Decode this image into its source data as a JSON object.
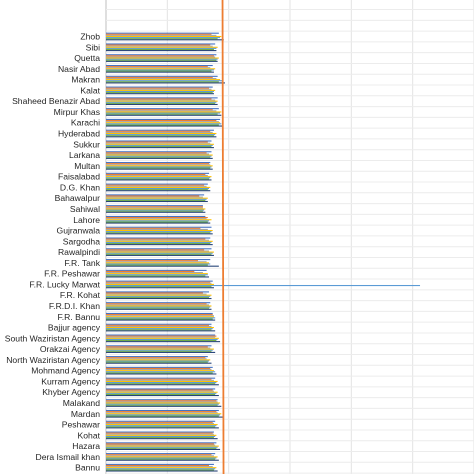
{
  "chart_data": {
    "type": "bar",
    "orientation": "horizontal",
    "title": "",
    "xlabel": "",
    "ylabel": "",
    "xlim": [
      0,
      30
    ],
    "grid": true,
    "legend": "none",
    "categories": [
      "Zhob",
      "Sibi",
      "Quetta",
      "Nasir Abad",
      "Makran",
      "Kalat",
      "Shaheed Benazir Abad",
      "Mirpur Khas",
      "Karachi",
      "Hyderabad",
      "Sukkur",
      "Larkana",
      "Multan",
      "Faisalabad",
      "D.G. Khan",
      "Bahawalpur",
      "Sahiwal",
      "Lahore",
      "Gujranwala",
      "Sargodha",
      "Rawalpindi",
      "F.R. Tank",
      "F.R. Peshawar",
      "F.R. Lucky Marwat",
      "F.R. Kohat",
      "F.R.D.I. Khan",
      "F.R. Bannu",
      "Bajjur agency",
      "South Waziristan Agency",
      "Orakzai Agency",
      "North Waziristan Agency",
      "Mohmand Agency",
      "Kurram Agency",
      "Khyber Agency",
      "Malakand",
      "Mardan",
      "Peshawar",
      "Kohat",
      "Hazara",
      "Dera Ismail khan",
      "Bannu"
    ],
    "series": [
      {
        "color": "#4472c4",
        "values": [
          9.2,
          8.9,
          9.0,
          8.7,
          9.1,
          8.7,
          9.1,
          9.2,
          9.3,
          8.8,
          8.6,
          8.6,
          8.5,
          8.4,
          8.3,
          8.0,
          7.9,
          8.1,
          8.6,
          8.5,
          8.6,
          8.5,
          8.2,
          8.7,
          8.4,
          8.5,
          8.7,
          8.6,
          8.9,
          8.6,
          8.3,
          8.7,
          8.9,
          8.9,
          9.1,
          9.2,
          8.9,
          8.8,
          9.0,
          8.9,
          8.8
        ]
      },
      {
        "color": "#ed7d31",
        "values": [
          8.6,
          8.5,
          8.8,
          8.3,
          8.7,
          8.4,
          8.6,
          8.7,
          9.0,
          8.5,
          8.3,
          8.2,
          8.4,
          8.1,
          8.0,
          7.6,
          7.9,
          8.3,
          7.7,
          8.1,
          8.0,
          7.5,
          7.2,
          8.5,
          7.9,
          8.2,
          8.7,
          8.4,
          9.0,
          8.3,
          8.1,
          8.5,
          8.6,
          8.7,
          9.0,
          9.0,
          8.7,
          8.7,
          8.8,
          8.6,
          8.4
        ]
      },
      {
        "color": "#a5a5a5",
        "values": [
          9.0,
          8.7,
          8.9,
          8.5,
          9.0,
          8.6,
          8.9,
          9.0,
          9.2,
          8.7,
          8.5,
          8.4,
          8.5,
          8.3,
          8.2,
          7.9,
          7.9,
          8.2,
          8.3,
          8.4,
          8.4,
          8.2,
          7.9,
          8.6,
          8.2,
          8.4,
          8.8,
          8.6,
          8.9,
          8.5,
          8.2,
          8.6,
          8.8,
          8.8,
          9.1,
          9.1,
          8.8,
          8.8,
          8.9,
          8.8,
          8.7
        ]
      },
      {
        "color": "#ffc000",
        "values": [
          9.4,
          9.1,
          9.2,
          8.9,
          9.3,
          8.9,
          9.1,
          9.4,
          9.3,
          9.0,
          8.8,
          8.7,
          8.7,
          8.6,
          8.5,
          8.3,
          8.1,
          8.6,
          8.7,
          8.7,
          8.8,
          8.4,
          8.3,
          8.8,
          8.6,
          8.6,
          8.8,
          8.8,
          9.2,
          8.8,
          8.5,
          8.8,
          9.1,
          9.1,
          9.3,
          9.4,
          9.1,
          9.0,
          9.2,
          9.1,
          9.0
        ]
      },
      {
        "color": "#5b9bd5",
        "values": [
          9.3,
          9.0,
          9.1,
          8.8,
          9.5,
          8.8,
          9.0,
          9.3,
          9.4,
          8.9,
          8.7,
          8.6,
          8.6,
          8.5,
          8.4,
          8.2,
          8.0,
          8.4,
          8.6,
          8.6,
          8.7,
          8.5,
          8.3,
          25.6,
          8.5,
          8.5,
          8.9,
          8.7,
          9.1,
          8.7,
          8.4,
          8.9,
          9.0,
          9.0,
          9.2,
          9.3,
          9.0,
          8.9,
          9.1,
          9.0,
          8.9
        ]
      },
      {
        "color": "#70ad47",
        "values": [
          9.1,
          8.8,
          9.0,
          8.6,
          9.2,
          8.7,
          8.9,
          9.1,
          9.2,
          8.8,
          8.6,
          8.5,
          8.5,
          8.4,
          8.3,
          8.1,
          7.9,
          8.3,
          8.5,
          8.5,
          8.6,
          8.3,
          8.1,
          8.6,
          8.4,
          8.4,
          8.7,
          8.6,
          9.0,
          8.6,
          8.3,
          8.7,
          8.9,
          8.9,
          9.1,
          9.2,
          8.9,
          8.8,
          9.0,
          8.9,
          8.8
        ]
      },
      {
        "color": "#264478",
        "values": [
          9.6,
          9.0,
          9.1,
          8.8,
          9.7,
          8.8,
          9.1,
          9.4,
          9.5,
          9.0,
          8.8,
          8.7,
          8.7,
          8.6,
          8.5,
          8.3,
          8.1,
          8.5,
          8.7,
          8.7,
          8.8,
          9.2,
          8.4,
          8.8,
          8.6,
          8.6,
          8.9,
          8.9,
          9.3,
          8.9,
          8.6,
          9.0,
          9.2,
          9.2,
          9.4,
          9.5,
          9.2,
          9.1,
          9.3,
          9.2,
          9.1
        ]
      }
    ],
    "reference_line": {
      "value": 9.5,
      "color": "#ed7d31"
    }
  }
}
